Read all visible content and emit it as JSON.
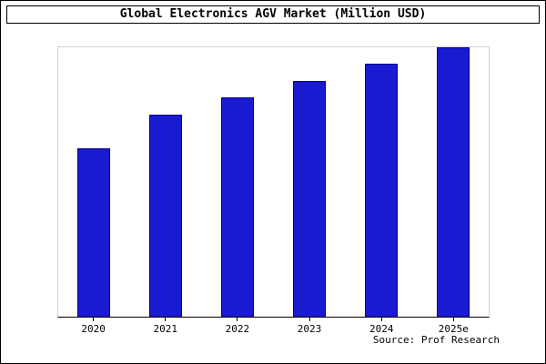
{
  "title": "Global Electronics AGV Market (Million USD)",
  "source": "Source: Prof Research",
  "colors": {
    "bar_fill": "#1a1ad1",
    "bar_border": "#000080",
    "axis": "#000000",
    "plot_border": "#d0d0d0"
  },
  "chart_data": {
    "type": "bar",
    "title": "Global Electronics AGV Market (Million USD)",
    "categories": [
      "2020",
      "2021",
      "2022",
      "2023",
      "2024",
      "2025e"
    ],
    "values": [
      62.5,
      75,
      81.5,
      87.5,
      94,
      100
    ],
    "xlabel": "",
    "ylabel": "",
    "ylim": [
      0,
      100
    ],
    "grid": false,
    "legend": false,
    "note": "no y-axis tick labels shown; values are relative bar heights estimated with max bar = 100"
  }
}
